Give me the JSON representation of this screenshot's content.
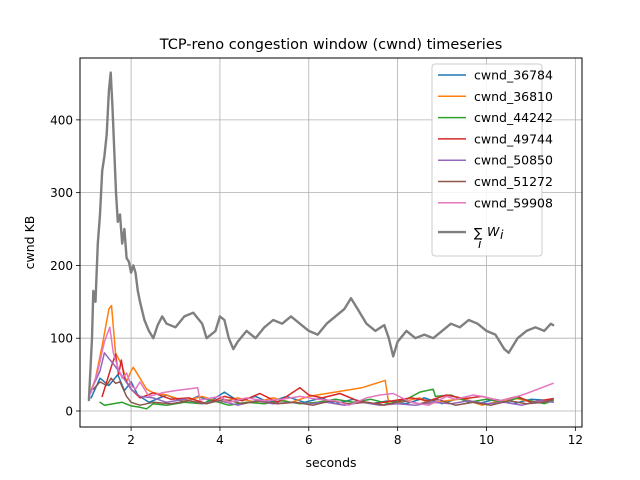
{
  "chart_data": {
    "type": "line",
    "title": "TCP-reno congestion window (cwnd) timeseries",
    "xlabel": "seconds",
    "ylabel": "cwnd KB",
    "xlim": [
      0.85,
      12.15
    ],
    "ylim": [
      -22,
      485
    ],
    "xticks": [
      2,
      4,
      6,
      8,
      10,
      12
    ],
    "yticks": [
      0,
      100,
      200,
      300,
      400
    ],
    "grid": true,
    "legend_position": "upper right",
    "series": [
      {
        "name": "cwnd_36784",
        "color": "#1f77b4",
        "width": 1.5,
        "points": [
          [
            1.1,
            18
          ],
          [
            1.3,
            45
          ],
          [
            1.5,
            35
          ],
          [
            1.7,
            50
          ],
          [
            1.85,
            28
          ],
          [
            2.0,
            40
          ],
          [
            2.15,
            22
          ],
          [
            2.4,
            12
          ],
          [
            2.8,
            22
          ],
          [
            3.2,
            12
          ],
          [
            3.5,
            20
          ],
          [
            3.8,
            14
          ],
          [
            4.1,
            26
          ],
          [
            4.4,
            14
          ],
          [
            4.8,
            20
          ],
          [
            5.1,
            12
          ],
          [
            5.5,
            20
          ],
          [
            5.9,
            12
          ],
          [
            6.3,
            18
          ],
          [
            6.6,
            10
          ],
          [
            7.0,
            16
          ],
          [
            7.4,
            10
          ],
          [
            7.8,
            14
          ],
          [
            8.2,
            10
          ],
          [
            8.6,
            18
          ],
          [
            9.0,
            10
          ],
          [
            9.4,
            18
          ],
          [
            9.8,
            10
          ],
          [
            10.2,
            16
          ],
          [
            10.6,
            10
          ],
          [
            11.0,
            16
          ],
          [
            11.5,
            14
          ]
        ]
      },
      {
        "name": "cwnd_36810",
        "color": "#ff7f0e",
        "width": 1.5,
        "points": [
          [
            1.05,
            20
          ],
          [
            1.2,
            45
          ],
          [
            1.35,
            90
          ],
          [
            1.5,
            140
          ],
          [
            1.56,
            145
          ],
          [
            1.65,
            80
          ],
          [
            1.8,
            62
          ],
          [
            1.9,
            40
          ],
          [
            2.0,
            55
          ],
          [
            2.05,
            60
          ],
          [
            2.2,
            45
          ],
          [
            2.35,
            30
          ],
          [
            2.5,
            25
          ],
          [
            2.8,
            22
          ],
          [
            3.2,
            14
          ],
          [
            3.6,
            20
          ],
          [
            4.0,
            12
          ],
          [
            4.4,
            18
          ],
          [
            4.8,
            12
          ],
          [
            5.2,
            18
          ],
          [
            5.6,
            12
          ],
          [
            6.0,
            20
          ],
          [
            6.4,
            24
          ],
          [
            6.8,
            28
          ],
          [
            7.2,
            32
          ],
          [
            7.72,
            42
          ],
          [
            7.8,
            10
          ],
          [
            8.2,
            14
          ],
          [
            8.5,
            18
          ],
          [
            8.7,
            10
          ],
          [
            9.1,
            14
          ],
          [
            9.5,
            17
          ],
          [
            9.9,
            8
          ],
          [
            10.3,
            14
          ],
          [
            10.7,
            17
          ],
          [
            11.1,
            11
          ],
          [
            11.5,
            17
          ]
        ]
      },
      {
        "name": "cwnd_44242",
        "color": "#2ca02c",
        "width": 1.5,
        "points": [
          [
            1.3,
            12
          ],
          [
            1.4,
            8
          ],
          [
            1.6,
            10
          ],
          [
            1.8,
            12
          ],
          [
            2.0,
            7
          ],
          [
            2.2,
            5
          ],
          [
            2.35,
            3
          ],
          [
            2.5,
            10
          ],
          [
            2.8,
            8
          ],
          [
            3.2,
            12
          ],
          [
            3.6,
            10
          ],
          [
            3.8,
            15
          ],
          [
            4.2,
            8
          ],
          [
            4.6,
            12
          ],
          [
            5.0,
            10
          ],
          [
            5.4,
            14
          ],
          [
            5.8,
            10
          ],
          [
            6.2,
            12
          ],
          [
            6.6,
            16
          ],
          [
            7.0,
            12
          ],
          [
            7.4,
            16
          ],
          [
            7.8,
            10
          ],
          [
            8.2,
            16
          ],
          [
            8.5,
            26
          ],
          [
            8.8,
            30
          ],
          [
            8.85,
            20
          ],
          [
            9.2,
            22
          ],
          [
            9.6,
            12
          ],
          [
            10.0,
            16
          ],
          [
            10.4,
            12
          ],
          [
            10.7,
            18
          ],
          [
            11.0,
            14
          ],
          [
            11.3,
            10
          ],
          [
            11.5,
            14
          ]
        ]
      },
      {
        "name": "cwnd_49744",
        "color": "#d62728",
        "width": 1.5,
        "points": [
          [
            1.35,
            20
          ],
          [
            1.45,
            40
          ],
          [
            1.55,
            60
          ],
          [
            1.65,
            78
          ],
          [
            1.72,
            50
          ],
          [
            1.78,
            70
          ],
          [
            1.85,
            45
          ],
          [
            2.0,
            30
          ],
          [
            2.2,
            18
          ],
          [
            2.5,
            25
          ],
          [
            2.9,
            16
          ],
          [
            3.3,
            18
          ],
          [
            3.7,
            10
          ],
          [
            4.1,
            20
          ],
          [
            4.5,
            14
          ],
          [
            4.9,
            24
          ],
          [
            5.3,
            12
          ],
          [
            5.7,
            28
          ],
          [
            5.8,
            32
          ],
          [
            6.0,
            22
          ],
          [
            6.3,
            18
          ],
          [
            6.7,
            24
          ],
          [
            7.1,
            14
          ],
          [
            7.5,
            10
          ],
          [
            7.9,
            14
          ],
          [
            8.3,
            18
          ],
          [
            8.7,
            14
          ],
          [
            9.1,
            22
          ],
          [
            9.5,
            17
          ],
          [
            9.9,
            20
          ],
          [
            10.3,
            14
          ],
          [
            10.7,
            20
          ],
          [
            11.0,
            12
          ],
          [
            11.5,
            17
          ]
        ]
      },
      {
        "name": "cwnd_50850",
        "color": "#9467bd",
        "width": 1.5,
        "points": [
          [
            1.05,
            20
          ],
          [
            1.15,
            35
          ],
          [
            1.3,
            55
          ],
          [
            1.4,
            80
          ],
          [
            1.5,
            72
          ],
          [
            1.6,
            65
          ],
          [
            1.8,
            48
          ],
          [
            2.0,
            30
          ],
          [
            2.2,
            20
          ],
          [
            2.5,
            18
          ],
          [
            2.8,
            12
          ],
          [
            3.2,
            16
          ],
          [
            3.6,
            10
          ],
          [
            4.0,
            14
          ],
          [
            4.4,
            8
          ],
          [
            4.8,
            14
          ],
          [
            5.2,
            10
          ],
          [
            5.6,
            12
          ],
          [
            6.0,
            10
          ],
          [
            6.4,
            12
          ],
          [
            6.8,
            8
          ],
          [
            7.2,
            12
          ],
          [
            7.6,
            8
          ],
          [
            8.0,
            10
          ],
          [
            8.4,
            8
          ],
          [
            8.8,
            12
          ],
          [
            9.2,
            10
          ],
          [
            9.6,
            14
          ],
          [
            10.0,
            10
          ],
          [
            10.4,
            12
          ],
          [
            10.8,
            8
          ],
          [
            11.2,
            14
          ],
          [
            11.5,
            12
          ]
        ]
      },
      {
        "name": "cwnd_51272",
        "color": "#8c564b",
        "width": 1.5,
        "points": [
          [
            1.15,
            30
          ],
          [
            1.3,
            40
          ],
          [
            1.45,
            35
          ],
          [
            1.55,
            45
          ],
          [
            1.65,
            38
          ],
          [
            1.75,
            40
          ],
          [
            1.9,
            20
          ],
          [
            2.0,
            12
          ],
          [
            2.2,
            8
          ],
          [
            2.5,
            12
          ],
          [
            2.9,
            10
          ],
          [
            3.3,
            14
          ],
          [
            3.7,
            10
          ],
          [
            4.1,
            16
          ],
          [
            4.5,
            10
          ],
          [
            4.9,
            14
          ],
          [
            5.3,
            10
          ],
          [
            5.7,
            12
          ],
          [
            6.1,
            8
          ],
          [
            6.5,
            14
          ],
          [
            6.9,
            10
          ],
          [
            7.3,
            12
          ],
          [
            7.7,
            8
          ],
          [
            8.1,
            14
          ],
          [
            8.5,
            10
          ],
          [
            8.9,
            16
          ],
          [
            9.3,
            8
          ],
          [
            9.7,
            12
          ],
          [
            10.1,
            8
          ],
          [
            10.5,
            14
          ],
          [
            10.9,
            10
          ],
          [
            11.3,
            12
          ],
          [
            11.5,
            16
          ]
        ]
      },
      {
        "name": "cwnd_59908",
        "color": "#e377c2",
        "width": 1.5,
        "points": [
          [
            1.1,
            25
          ],
          [
            1.25,
            55
          ],
          [
            1.4,
            95
          ],
          [
            1.52,
            115
          ],
          [
            1.6,
            80
          ],
          [
            1.7,
            60
          ],
          [
            1.8,
            45
          ],
          [
            1.9,
            52
          ],
          [
            2.0,
            35
          ],
          [
            2.1,
            30
          ],
          [
            2.2,
            40
          ],
          [
            2.4,
            20
          ],
          [
            2.7,
            25
          ],
          [
            3.0,
            28
          ],
          [
            3.5,
            32
          ],
          [
            3.55,
            15
          ],
          [
            4.0,
            20
          ],
          [
            4.2,
            12
          ],
          [
            4.6,
            18
          ],
          [
            5.0,
            14
          ],
          [
            5.4,
            16
          ],
          [
            5.8,
            20
          ],
          [
            6.2,
            16
          ],
          [
            6.6,
            14
          ],
          [
            6.9,
            8
          ],
          [
            7.3,
            18
          ],
          [
            7.6,
            22
          ],
          [
            7.9,
            24
          ],
          [
            8.3,
            12
          ],
          [
            8.7,
            8
          ],
          [
            9.1,
            20
          ],
          [
            9.3,
            16
          ],
          [
            9.7,
            22
          ],
          [
            9.9,
            20
          ],
          [
            10.3,
            14
          ],
          [
            10.6,
            18
          ],
          [
            10.9,
            24
          ],
          [
            11.5,
            38
          ]
        ]
      },
      {
        "name": "∑W",
        "color": "#7f7f7f",
        "width": 2.4,
        "points": [
          [
            1.05,
            15
          ],
          [
            1.12,
            100
          ],
          [
            1.15,
            165
          ],
          [
            1.2,
            150
          ],
          [
            1.25,
            230
          ],
          [
            1.3,
            270
          ],
          [
            1.35,
            330
          ],
          [
            1.4,
            350
          ],
          [
            1.45,
            380
          ],
          [
            1.5,
            440
          ],
          [
            1.54,
            465
          ],
          [
            1.58,
            420
          ],
          [
            1.62,
            360
          ],
          [
            1.66,
            300
          ],
          [
            1.7,
            260
          ],
          [
            1.75,
            270
          ],
          [
            1.8,
            230
          ],
          [
            1.85,
            250
          ],
          [
            1.9,
            210
          ],
          [
            1.95,
            205
          ],
          [
            2.0,
            190
          ],
          [
            2.05,
            200
          ],
          [
            2.1,
            190
          ],
          [
            2.15,
            165
          ],
          [
            2.2,
            150
          ],
          [
            2.3,
            125
          ],
          [
            2.4,
            110
          ],
          [
            2.5,
            100
          ],
          [
            2.6,
            118
          ],
          [
            2.7,
            130
          ],
          [
            2.8,
            120
          ],
          [
            3.0,
            115
          ],
          [
            3.2,
            130
          ],
          [
            3.4,
            135
          ],
          [
            3.6,
            120
          ],
          [
            3.7,
            100
          ],
          [
            3.9,
            110
          ],
          [
            4.0,
            130
          ],
          [
            4.1,
            125
          ],
          [
            4.2,
            100
          ],
          [
            4.3,
            85
          ],
          [
            4.4,
            95
          ],
          [
            4.6,
            110
          ],
          [
            4.8,
            100
          ],
          [
            5.0,
            115
          ],
          [
            5.2,
            125
          ],
          [
            5.4,
            120
          ],
          [
            5.6,
            130
          ],
          [
            5.8,
            120
          ],
          [
            6.0,
            110
          ],
          [
            6.2,
            105
          ],
          [
            6.4,
            120
          ],
          [
            6.6,
            130
          ],
          [
            6.8,
            140
          ],
          [
            6.95,
            155
          ],
          [
            7.1,
            140
          ],
          [
            7.3,
            120
          ],
          [
            7.5,
            110
          ],
          [
            7.7,
            118
          ],
          [
            7.8,
            100
          ],
          [
            7.9,
            75
          ],
          [
            8.0,
            95
          ],
          [
            8.2,
            110
          ],
          [
            8.4,
            100
          ],
          [
            8.6,
            105
          ],
          [
            8.8,
            100
          ],
          [
            9.0,
            110
          ],
          [
            9.2,
            120
          ],
          [
            9.4,
            115
          ],
          [
            9.6,
            125
          ],
          [
            9.8,
            120
          ],
          [
            10.0,
            110
          ],
          [
            10.2,
            105
          ],
          [
            10.4,
            85
          ],
          [
            10.5,
            80
          ],
          [
            10.7,
            100
          ],
          [
            10.9,
            110
          ],
          [
            11.1,
            115
          ],
          [
            11.3,
            110
          ],
          [
            11.45,
            120
          ],
          [
            11.5,
            118
          ]
        ]
      }
    ]
  }
}
